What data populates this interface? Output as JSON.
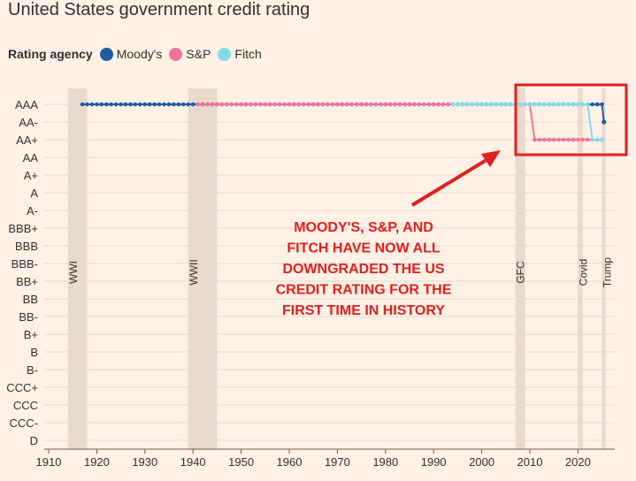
{
  "title": "United States government credit rating",
  "legend": {
    "label": "Rating agency",
    "items": [
      {
        "name": "Moody's",
        "color": "#1f5aa6"
      },
      {
        "name": "S&P",
        "color": "#f0739a"
      },
      {
        "name": "Fitch",
        "color": "#7fdde8"
      }
    ]
  },
  "annotation": {
    "lines": [
      "MOODY'S, S&P, AND",
      "FITCH HAVE NOW ALL",
      "DOWNGRADED THE US",
      "CREDIT RATING FOR THE",
      "FIRST TIME IN HISTORY"
    ],
    "color": "#e02020"
  },
  "chart_data": {
    "type": "line",
    "title": "United States government credit rating",
    "y_categories": [
      "AAA",
      "AA-",
      "AA+",
      "AA",
      "A+",
      "A",
      "A-",
      "BBB+",
      "BBB",
      "BBB-",
      "BB+",
      "BB",
      "BB-",
      "B+",
      "B",
      "B-",
      "CCC+",
      "CCC",
      "CCC-",
      "D"
    ],
    "xlim": [
      1910,
      2026
    ],
    "x_ticks": [
      1910,
      1920,
      1930,
      1940,
      1950,
      1960,
      1970,
      1980,
      1990,
      2000,
      2010,
      2020
    ],
    "shaded_periods": [
      {
        "label": "WWI",
        "start": 1914,
        "end": 1918
      },
      {
        "label": "WWII",
        "start": 1939,
        "end": 1945
      },
      {
        "label": "GFC",
        "start": 2007,
        "end": 2009
      },
      {
        "label": "Covid",
        "start": 2020,
        "end": 2021
      },
      {
        "label": "Trump",
        "start": 2025,
        "end": 2025.7
      }
    ],
    "series": [
      {
        "name": "Moody's",
        "color": "#1f5aa6",
        "start_year": 1917,
        "points": [
          [
            1917,
            "AAA"
          ],
          [
            2024,
            "AAA"
          ],
          [
            2025,
            "AAA"
          ],
          [
            2025.4,
            "AA-"
          ]
        ]
      },
      {
        "name": "S&P",
        "color": "#f0739a",
        "start_year": 1941,
        "points": [
          [
            1941,
            "AAA"
          ],
          [
            2010,
            "AAA"
          ],
          [
            2011,
            "AA+"
          ],
          [
            2025,
            "AA+"
          ]
        ]
      },
      {
        "name": "Fitch",
        "color": "#7fdde8",
        "start_year": 1994,
        "points": [
          [
            1994,
            "AAA"
          ],
          [
            2022,
            "AAA"
          ],
          [
            2023,
            "AA+"
          ],
          [
            2025,
            "AA+"
          ]
        ]
      }
    ]
  }
}
